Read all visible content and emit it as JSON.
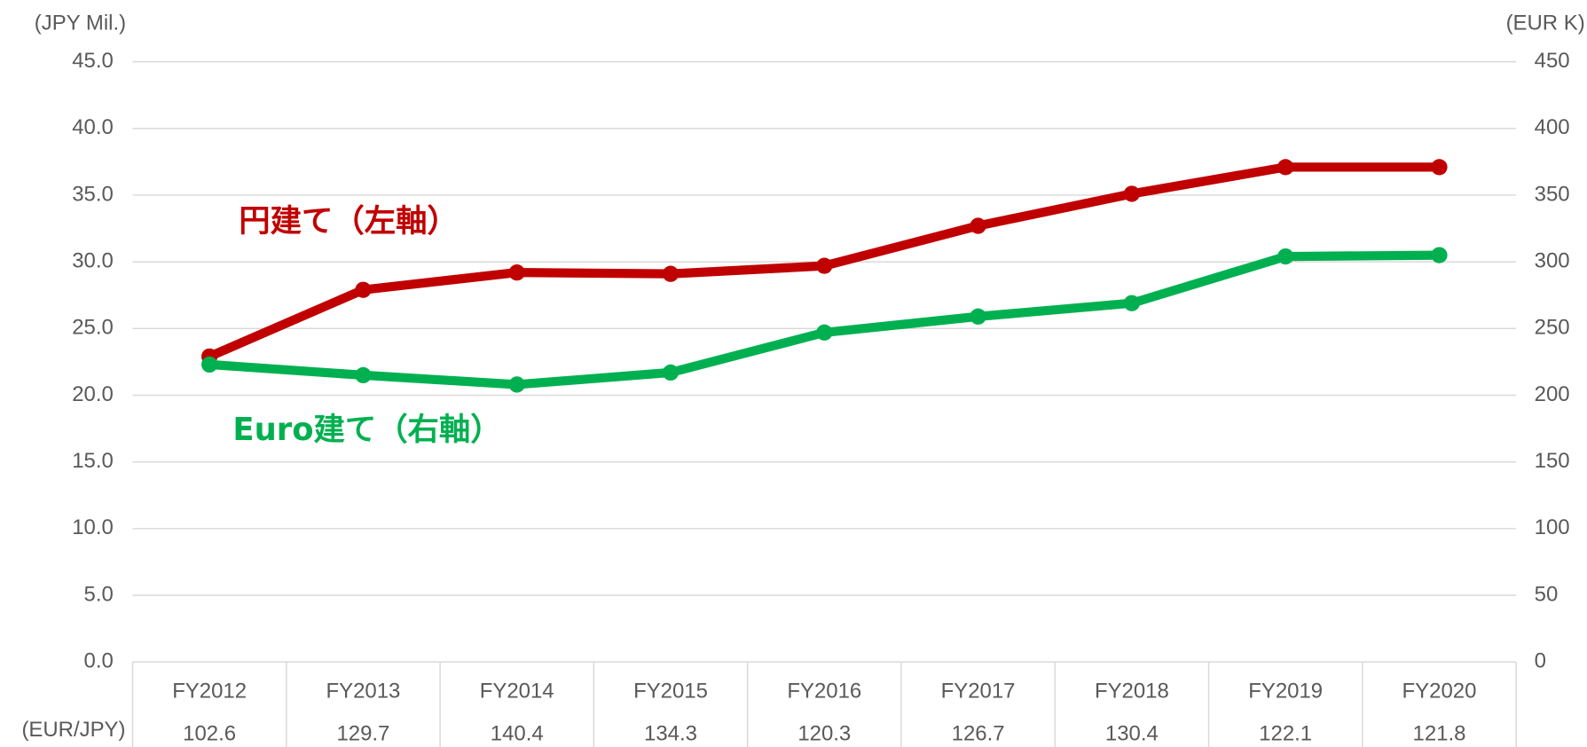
{
  "chart_data": {
    "type": "line",
    "y_label": "(JPY Mil.)",
    "y2_label": "(EUR K)",
    "categories": [
      "FY2012",
      "FY2013",
      "FY2014",
      "FY2015",
      "FY2016",
      "FY2017",
      "FY2018",
      "FY2019",
      "FY2020"
    ],
    "series": [
      {
        "name": "円建て（左軸）",
        "color": "#c00000",
        "values": [
          22.9,
          27.9,
          29.2,
          29.1,
          29.7,
          32.7,
          35.1,
          37.1,
          37.1
        ]
      },
      {
        "name": "Euro建て（右軸）",
        "color": "#00b050",
        "axis": "y2",
        "values": [
          223,
          215,
          208,
          217,
          247,
          259,
          269,
          304,
          305
        ]
      }
    ],
    "ylim": [
      0,
      45
    ],
    "yticks": [
      {
        "value": 0,
        "label": "0.0"
      },
      {
        "value": 5,
        "label": "5.0"
      },
      {
        "value": 10,
        "label": "10.0"
      },
      {
        "value": 15,
        "label": "15.0"
      },
      {
        "value": 20,
        "label": "20.0"
      },
      {
        "value": 25,
        "label": "25.0"
      },
      {
        "value": 30,
        "label": "30.0"
      },
      {
        "value": 35,
        "label": "35.0"
      },
      {
        "value": 40,
        "label": "40.0"
      },
      {
        "value": 45,
        "label": "45.0"
      }
    ],
    "y2lim": [
      0,
      450
    ],
    "y2ticks": [
      0,
      50,
      100,
      150,
      200,
      250,
      300,
      350,
      400,
      450
    ],
    "grid": true,
    "table": {
      "row_label": "(EUR/JPY)",
      "values": [
        102.6,
        129.7,
        140.4,
        134.3,
        120.3,
        126.7,
        130.4,
        122.1,
        121.8
      ]
    }
  }
}
